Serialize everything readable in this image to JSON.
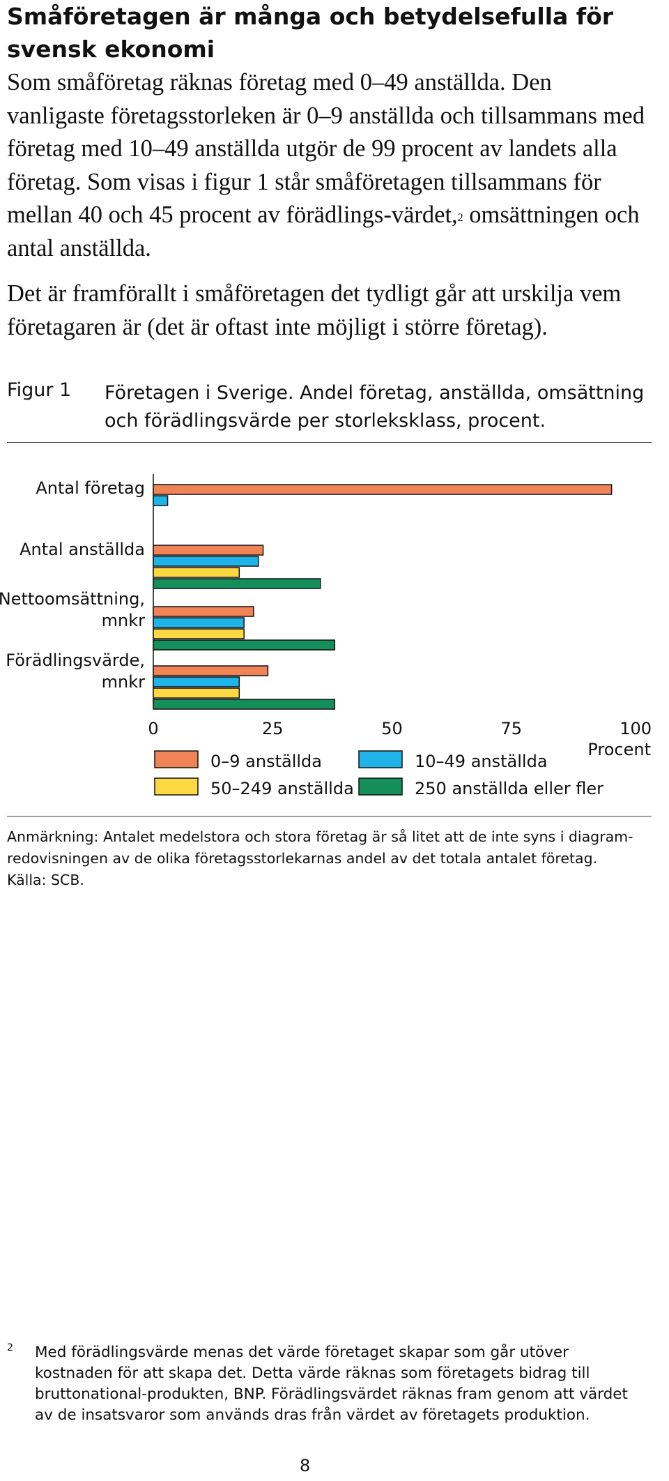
{
  "heading": "Småföretagen är många och betydelsefulla för svensk ekonomi",
  "paragraph1_main": "Som småföretag räknas företag med 0–49 anställda. Den vanligaste företagsstorleken är 0–9 anställda och tillsammans med företag med 10–49 anställda utgör de 99 procent av landets alla företag. Som visas i figur 1 står småföretagen tillsammans för mellan 40 och 45 procent av förädlings-värdet,",
  "paragraph1_sup": "2",
  "paragraph1_end": " omsättningen och antal anställda.",
  "paragraph2": "Det är framförallt i småföretagen det tydligt går att urskilja vem företagaren är (det är oftast inte möjligt i större företag).",
  "figure": {
    "label": "Figur 1",
    "title": "Företagen i Sverige. Andel företag, anställda, omsättning och förädlingsvärde per storleksklass, procent."
  },
  "chart_data": {
    "type": "bar",
    "orientation": "horizontal",
    "categories": [
      [
        "Antal företag"
      ],
      [
        "Antal anställda"
      ],
      [
        "Nettoomsättning,",
        "mnkr"
      ],
      [
        "Förädlingsvärde,",
        "mnkr"
      ]
    ],
    "series": [
      {
        "name": "0–9 anställda",
        "color": "#f08457",
        "values": [
          96,
          23,
          21,
          24
        ]
      },
      {
        "name": "10–49 anställda",
        "color": "#1fb3e8",
        "values": [
          3,
          22,
          19,
          18
        ]
      },
      {
        "name": "50–249 anställda",
        "color": "#fcd843",
        "values": [
          0,
          18,
          19,
          18
        ]
      },
      {
        "name": "250 anställda eller fler",
        "color": "#148f5a",
        "values": [
          0,
          35,
          38,
          38
        ]
      }
    ],
    "xticks": [
      "0",
      "25",
      "50",
      "75",
      "100"
    ],
    "xlim": [
      0,
      100
    ],
    "xlabel": "Procent",
    "legend_position": "bottom",
    "grid": false
  },
  "note": "Anmärkning: Antalet medelstora och stora företag är så litet att de inte syns i diagram-redovisningen av de olika företagsstorlekarnas andel av det totala antalet företag.",
  "source": "Källa: SCB.",
  "footnote": {
    "number": "2",
    "text": "Med förädlingsvärde menas det värde företaget skapar som går utöver kostnaden för att skapa det. Detta värde räknas som företagets bidrag till bruttonational-produkten, BNP. Förädlingsvärdet räknas fram genom att värdet av de insatsvaror som används dras från värdet av företagets produktion."
  },
  "page_number": "8"
}
